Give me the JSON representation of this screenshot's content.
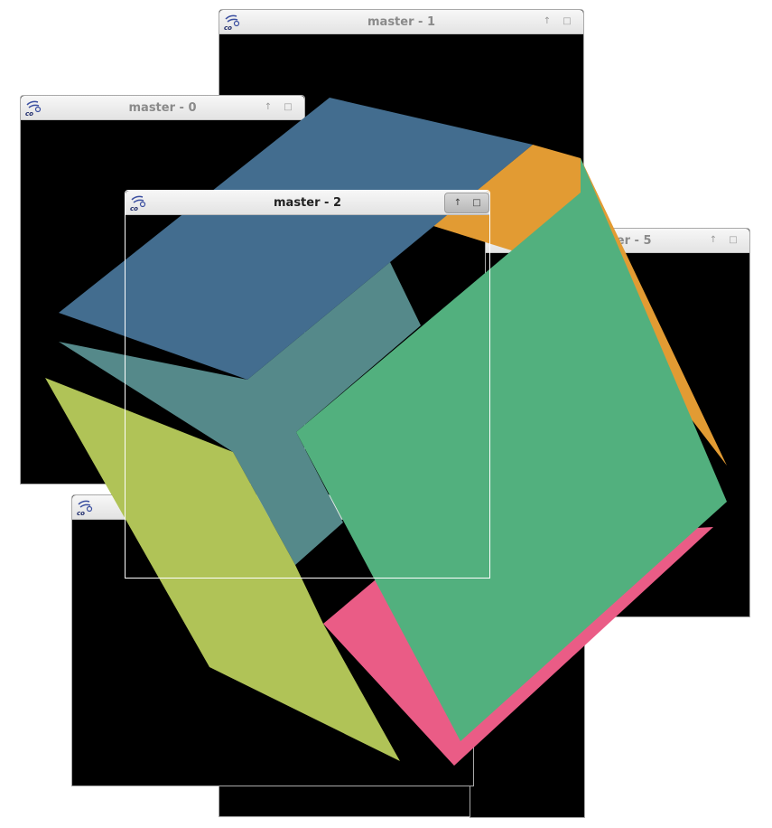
{
  "windows": {
    "master_0": {
      "title": "master - 0",
      "maximize_glyph": "↑",
      "restore_glyph": "□"
    },
    "master_1": {
      "title": "master - 1",
      "maximize_glyph": "↑",
      "restore_glyph": "□"
    },
    "master_2": {
      "title": "master - 2",
      "maximize_glyph": "↑",
      "restore_glyph": "□"
    },
    "master_5": {
      "title": "master - 5",
      "maximize_glyph": "↑",
      "restore_glyph": "□"
    },
    "master_3": {
      "title": "",
      "maximize_glyph": "↑",
      "restore_glyph": "□"
    },
    "master_4": {
      "title": "",
      "maximize_glyph": "↑",
      "restore_glyph": "□"
    }
  },
  "icons": {
    "app": "eq-logo-icon",
    "maximize": "up-arrow-icon",
    "restore": "square-icon"
  },
  "colors": {
    "cube_top": "#436d8f",
    "cube_orange": "#e29b33",
    "cube_green": "#52b07e",
    "cube_teal": "#55898a",
    "cube_yellow": "#b0c357",
    "cube_pink": "#ea5c86"
  }
}
